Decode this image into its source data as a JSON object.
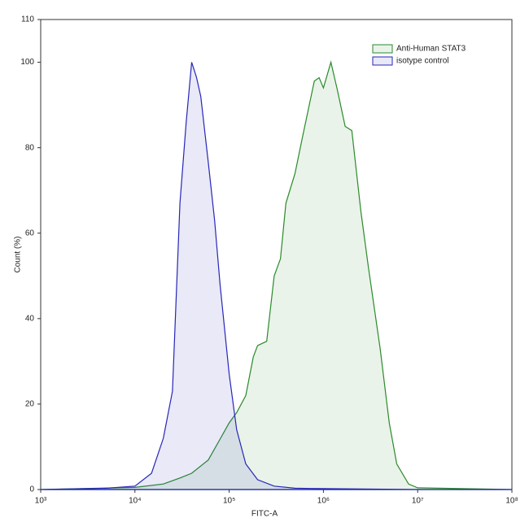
{
  "chart_data": {
    "type": "area",
    "xlabel": "FITC-A",
    "ylabel": "Count  (%)",
    "xscale": "log",
    "xlim": [
      1000,
      100000000
    ],
    "ylim": [
      0,
      110
    ],
    "xticks": [
      {
        "value": 1000,
        "label": "10³"
      },
      {
        "value": 10000,
        "label": "10⁴"
      },
      {
        "value": 100000,
        "label": "10⁵"
      },
      {
        "value": 1000000,
        "label": "10⁶"
      },
      {
        "value": 10000000,
        "label": "10⁷"
      },
      {
        "value": 100000000,
        "label": "10⁸"
      }
    ],
    "yticks": [
      0,
      20,
      40,
      60,
      80,
      100,
      110
    ],
    "legend": "upper right",
    "series": [
      {
        "name": "Anti-Human STAT3",
        "color": "#2a8a2a",
        "x": [
          1000,
          10000,
          20000,
          30000,
          40000,
          60000,
          80000,
          100000,
          120000,
          150000,
          180000,
          200000,
          250000,
          300000,
          350000,
          400000,
          500000,
          600000,
          800000,
          900000,
          1000000,
          1200000,
          1400000,
          1700000,
          2000000,
          2500000,
          3000000,
          4000000,
          5000000,
          6000000,
          8000000,
          10000000,
          100000000
        ],
        "values": [
          0,
          0.5,
          1.3,
          2.7,
          3.8,
          6.9,
          11.8,
          15.6,
          18,
          22,
          31,
          33.7,
          34.7,
          50,
          54,
          67,
          74,
          82.5,
          95.6,
          96.4,
          94,
          100,
          93.7,
          85,
          84,
          65,
          52,
          33,
          15.6,
          6,
          1.3,
          0.4,
          0
        ]
      },
      {
        "name": "isotype control",
        "color": "#2626b8",
        "x": [
          1000,
          5000,
          10000,
          15000,
          20000,
          25000,
          30000,
          35000,
          40000,
          45000,
          50000,
          60000,
          70000,
          80000,
          100000,
          120000,
          150000,
          200000,
          300000,
          500000,
          1000000,
          10000000,
          100000000
        ],
        "values": [
          0,
          0.3,
          0.8,
          3.8,
          12,
          23,
          67,
          86,
          100,
          96.5,
          92,
          76.6,
          63,
          48,
          27,
          14,
          6,
          2.3,
          0.8,
          0.3,
          0.2,
          0,
          0
        ]
      }
    ]
  }
}
